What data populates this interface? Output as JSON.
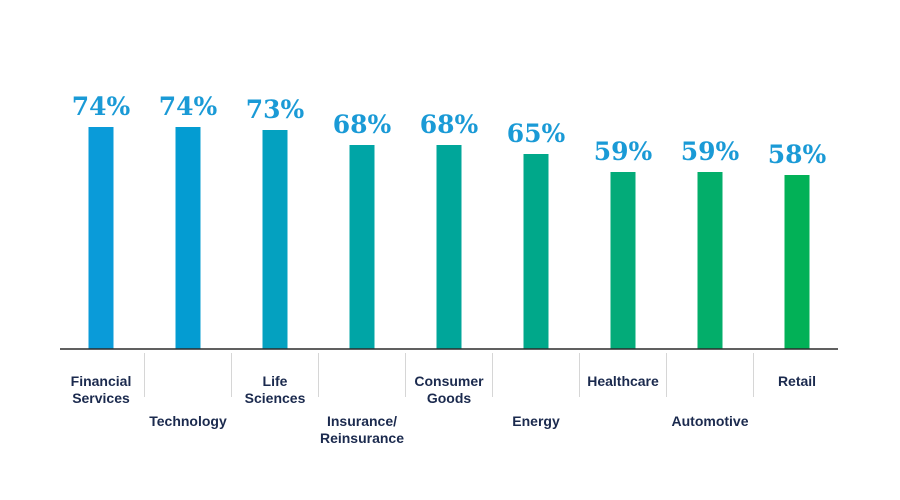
{
  "chart_data": {
    "type": "bar",
    "categories": [
      [
        "Financial",
        "Services"
      ],
      [
        "Technology"
      ],
      [
        "Life",
        "Sciences"
      ],
      [
        "Insurance/",
        "Reinsurance"
      ],
      [
        "Consumer",
        "Goods"
      ],
      [
        "Energy"
      ],
      [
        "Healthcare"
      ],
      [
        "Automotive"
      ],
      [
        "Retail"
      ]
    ],
    "values": [
      74,
      74,
      73,
      68,
      68,
      65,
      59,
      59,
      58
    ],
    "value_labels": [
      "74%",
      "74%",
      "73%",
      "68%",
      "68%",
      "65%",
      "59%",
      "59%",
      "58%"
    ],
    "label_rows": [
      "top",
      "bottom",
      "top",
      "bottom",
      "top",
      "bottom",
      "top",
      "bottom",
      "top"
    ],
    "bar_colors": [
      "#0a9bd9",
      "#049cd2",
      "#04a1c0",
      "#00a5a6",
      "#00a69a",
      "#00a88a",
      "#03ab79",
      "#03ae6a",
      "#02b157"
    ],
    "value_label_color": "#1a9ad6",
    "category_label_color": "#1b2a4e",
    "axis_color": "#2b2b2b",
    "divider_color": "#d6d6d6",
    "ylim": [
      0,
      100
    ],
    "grid": false,
    "legend": "none",
    "title": "",
    "xlabel": "",
    "ylabel": ""
  }
}
